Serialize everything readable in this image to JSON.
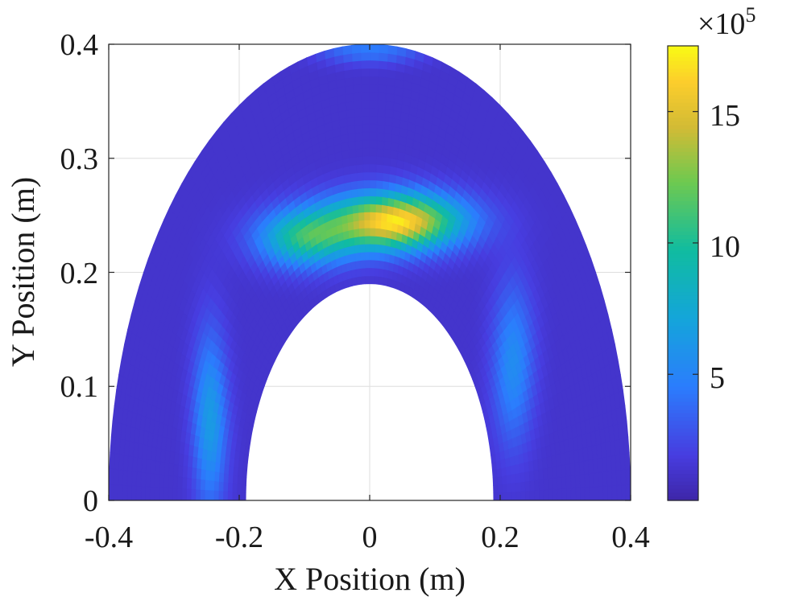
{
  "chart_data": {
    "type": "heatmap",
    "title": "",
    "xlabel": "X Position (m)",
    "ylabel": "Y Position (m)",
    "xlim": [
      -0.4,
      0.4
    ],
    "ylim": [
      0,
      0.4
    ],
    "xticks": [
      -0.4,
      -0.2,
      0,
      0.2,
      0.4
    ],
    "xtick_labels": [
      "-0.4",
      "-0.2",
      "0",
      "0.2",
      "0.4"
    ],
    "yticks": [
      0,
      0.1,
      0.2,
      0.3,
      0.4
    ],
    "ytick_labels": [
      "0",
      "0.1",
      "0.2",
      "0.3",
      "0.4"
    ],
    "grid": true,
    "colormap": "parula",
    "colorbar": {
      "multiplier_label": "×10",
      "multiplier_exponent": "5",
      "range": [
        0.2,
        17.5
      ],
      "ticks": [
        5,
        10,
        15
      ],
      "tick_labels": [
        "5",
        "10",
        "15"
      ]
    },
    "region": {
      "shape": "half-annulus (elliptical)",
      "outer_radius_x": 0.4,
      "outer_radius_y": 0.4,
      "inner_radius_x": 0.19,
      "inner_radius_y": 0.19
    },
    "background_value": 1.3,
    "hotspots": [
      {
        "x": 0.04,
        "y": 0.245,
        "value": 17.0
      },
      {
        "x": -0.1,
        "y": 0.23,
        "value": 10.0
      },
      {
        "x": -0.245,
        "y": 0.07,
        "value": 6.5
      },
      {
        "x": 0.22,
        "y": 0.12,
        "value": 5.5
      },
      {
        "x": 0.0,
        "y": 0.395,
        "value": 4.5
      }
    ]
  }
}
